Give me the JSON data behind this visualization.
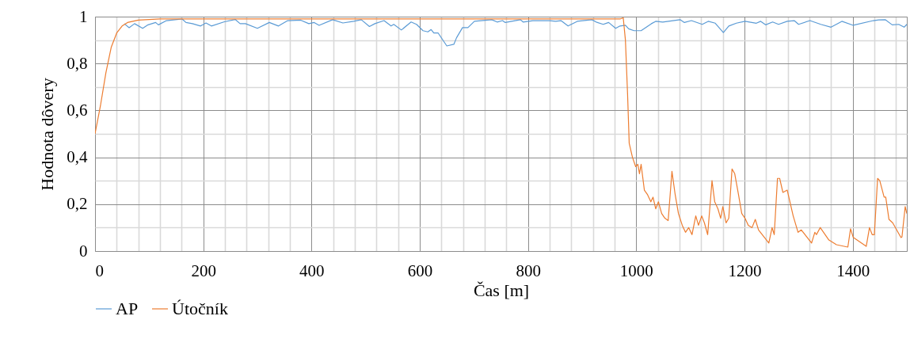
{
  "chart_data": {
    "type": "line",
    "xlabel": "Čas [m]",
    "ylabel": "Hodnota dôvery",
    "xlim": [
      0,
      1500
    ],
    "ylim": [
      0,
      1
    ],
    "xticks": [
      0,
      {
        "value": 40,
        "label": null
      },
      {
        "value": 80,
        "label": null
      },
      {
        "value": 120,
        "label": null
      },
      {
        "value": 160,
        "label": null
      },
      200,
      {
        "value": 240,
        "label": null
      },
      {
        "value": 280,
        "label": null
      },
      {
        "value": 320,
        "label": null
      },
      {
        "value": 360,
        "label": null
      },
      400,
      {
        "value": 440,
        "label": null
      },
      {
        "value": 480,
        "label": null
      },
      {
        "value": 520,
        "label": null
      },
      {
        "value": 560,
        "label": null
      },
      600,
      {
        "value": 640,
        "label": null
      },
      {
        "value": 680,
        "label": null
      },
      {
        "value": 720,
        "label": null
      },
      {
        "value": 760,
        "label": null
      },
      800,
      {
        "value": 840,
        "label": null
      },
      {
        "value": 880,
        "label": null
      },
      {
        "value": 920,
        "label": null
      },
      {
        "value": 960,
        "label": null
      },
      1000,
      {
        "value": 1040,
        "label": null
      },
      {
        "value": 1080,
        "label": null
      },
      {
        "value": 1120,
        "label": null
      },
      {
        "value": 1160,
        "label": null
      },
      1200,
      {
        "value": 1240,
        "label": null
      },
      {
        "value": 1280,
        "label": null
      },
      {
        "value": 1320,
        "label": null
      },
      {
        "value": 1360,
        "label": null
      },
      1400,
      {
        "value": 1440,
        "label": null
      },
      {
        "value": 1480,
        "label": null
      }
    ],
    "yticks": [
      0,
      {
        "value": 0.1,
        "label": null
      },
      {
        "value": 0.2,
        "label": "0,2"
      },
      {
        "value": 0.3,
        "label": null
      },
      {
        "value": 0.4,
        "label": "0,4"
      },
      {
        "value": 0.5,
        "label": null
      },
      {
        "value": 0.6,
        "label": "0,6"
      },
      {
        "value": 0.7,
        "label": null
      },
      {
        "value": 0.8,
        "label": "0,8"
      },
      {
        "value": 0.9,
        "label": null
      },
      1
    ],
    "grid": true,
    "legend": "bottom",
    "marker": "none",
    "line_style": "solid",
    "series": [
      {
        "name": "AP",
        "color": "#5b9bd5",
        "x": [
          54,
          63,
          73,
          88,
          98,
          112,
          117,
          132,
          161,
          168,
          180,
          195,
          205,
          215,
          239,
          259,
          268,
          278,
          300,
          322,
          339,
          356,
          380,
          395,
          405,
          414,
          439,
          458,
          478,
          492,
          507,
          517,
          534,
          547,
          552,
          566,
          584,
          594,
          606,
          615,
          621,
          626,
          634,
          650,
          663,
          668,
          679,
          689,
          701,
          733,
          743,
          753,
          758,
          786,
          791,
          809,
          840,
          851,
          861,
          874,
          891,
          918,
          926,
          939,
          949,
          962,
          970,
          980,
          986,
          996,
          1009,
          1028,
          1036,
          1049,
          1081,
          1089,
          1102,
          1122,
          1133,
          1146,
          1161,
          1171,
          1185,
          1201,
          1222,
          1230,
          1239,
          1252,
          1263,
          1279,
          1292,
          1300,
          1321,
          1341,
          1360,
          1380,
          1401,
          1438,
          1448,
          1460,
          1473,
          1485,
          1495,
          1500
        ],
        "values": [
          0.97,
          0.953,
          0.97,
          0.95,
          0.965,
          0.975,
          0.965,
          0.983,
          0.99,
          0.975,
          0.97,
          0.96,
          0.973,
          0.96,
          0.978,
          0.988,
          0.97,
          0.97,
          0.95,
          0.975,
          0.96,
          0.983,
          0.985,
          0.97,
          0.975,
          0.963,
          0.987,
          0.973,
          0.98,
          0.987,
          0.958,
          0.97,
          0.983,
          0.96,
          0.967,
          0.943,
          0.977,
          0.967,
          0.94,
          0.935,
          0.945,
          0.93,
          0.93,
          0.875,
          0.882,
          0.91,
          0.953,
          0.953,
          0.98,
          0.987,
          0.977,
          0.983,
          0.975,
          0.987,
          0.977,
          0.983,
          0.983,
          0.98,
          0.983,
          0.96,
          0.98,
          0.987,
          0.977,
          0.967,
          0.975,
          0.95,
          0.96,
          0.963,
          0.948,
          0.94,
          0.94,
          0.97,
          0.98,
          0.977,
          0.987,
          0.975,
          0.983,
          0.967,
          0.98,
          0.972,
          0.932,
          0.96,
          0.972,
          0.98,
          0.972,
          0.98,
          0.965,
          0.977,
          0.967,
          0.98,
          0.983,
          0.967,
          0.983,
          0.967,
          0.955,
          0.98,
          0.963,
          0.983,
          0.986,
          0.987,
          0.965,
          0.967,
          0.955,
          0.967
        ]
      },
      {
        "name": "Útočník",
        "color": "#ed7d31",
        "x": [
          0,
          10,
          20,
          30,
          40,
          50,
          60,
          80,
          120,
          970,
          976,
          980,
          984,
          987,
          993,
          999,
          1003,
          1006,
          1009,
          1015,
          1021,
          1027,
          1031,
          1036,
          1041,
          1047,
          1053,
          1059,
          1066,
          1072,
          1078,
          1085,
          1091,
          1097,
          1103,
          1110,
          1115,
          1121,
          1126,
          1132,
          1140,
          1145,
          1151,
          1156,
          1160,
          1166,
          1171,
          1177,
          1182,
          1189,
          1195,
          1201,
          1207,
          1214,
          1220,
          1226,
          1245,
          1251,
          1255,
          1261,
          1265,
          1271,
          1279,
          1290,
          1299,
          1305,
          1324,
          1330,
          1333,
          1340,
          1356,
          1370,
          1391,
          1396,
          1401,
          1425,
          1431,
          1436,
          1440,
          1446,
          1450,
          1458,
          1461,
          1467,
          1474,
          1489,
          1491,
          1497,
          1500
        ],
        "values": [
          0.5,
          0.62,
          0.76,
          0.87,
          0.93,
          0.96,
          0.975,
          0.985,
          0.99,
          0.99,
          0.995,
          0.9,
          0.67,
          0.46,
          0.4,
          0.36,
          0.37,
          0.33,
          0.37,
          0.26,
          0.24,
          0.21,
          0.23,
          0.18,
          0.21,
          0.16,
          0.14,
          0.13,
          0.34,
          0.24,
          0.16,
          0.11,
          0.08,
          0.1,
          0.07,
          0.15,
          0.11,
          0.15,
          0.12,
          0.07,
          0.3,
          0.21,
          0.18,
          0.14,
          0.19,
          0.12,
          0.14,
          0.35,
          0.33,
          0.24,
          0.16,
          0.14,
          0.11,
          0.1,
          0.135,
          0.09,
          0.034,
          0.1,
          0.07,
          0.31,
          0.31,
          0.25,
          0.26,
          0.15,
          0.08,
          0.09,
          0.034,
          0.08,
          0.07,
          0.1,
          0.047,
          0.027,
          0.017,
          0.095,
          0.058,
          0.02,
          0.1,
          0.07,
          0.07,
          0.31,
          0.3,
          0.23,
          0.23,
          0.135,
          0.12,
          0.058,
          0.06,
          0.19,
          0.16
        ]
      }
    ]
  }
}
